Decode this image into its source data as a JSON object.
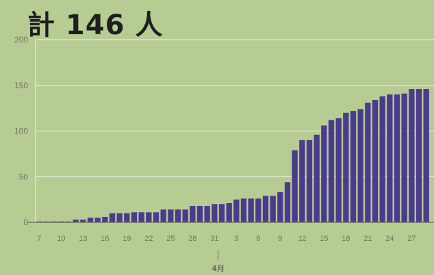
{
  "title": "計 146 人",
  "colors": {
    "background": "#b7cc93",
    "bar": "#4b3b8e",
    "grid": "#f2f5ec",
    "axis": "#6f7366"
  },
  "chart_data": {
    "type": "bar",
    "title": "計 146 人",
    "xlabel": "",
    "ylabel": "",
    "ylim": [
      0,
      200
    ],
    "yticks": [
      "0",
      "50",
      "100",
      "150",
      "200"
    ],
    "grid": true,
    "legend": "none",
    "categories": [
      "7",
      "8",
      "9",
      "10",
      "11",
      "12",
      "13",
      "14",
      "15",
      "16",
      "17",
      "18",
      "19",
      "20",
      "21",
      "22",
      "23",
      "24",
      "25",
      "26",
      "27",
      "28",
      "29",
      "30",
      "31",
      "1",
      "2",
      "3",
      "4",
      "5",
      "6",
      "7",
      "8",
      "9",
      "10",
      "11",
      "12",
      "13",
      "14",
      "15",
      "16",
      "17",
      "18",
      "19",
      "20",
      "21",
      "22",
      "23",
      "24",
      "25",
      "26",
      "27",
      "28",
      "29"
    ],
    "xtick_labels": [
      "7",
      "10",
      "13",
      "16",
      "19",
      "22",
      "25",
      "28",
      "31",
      "3",
      "6",
      "9",
      "12",
      "15",
      "18",
      "21",
      "24",
      "27"
    ],
    "month_label": "4月",
    "values": [
      1,
      1,
      1,
      1,
      1,
      3,
      3,
      5,
      5,
      6,
      10,
      10,
      10,
      11,
      11,
      11,
      11,
      14,
      14,
      14,
      14,
      18,
      18,
      18,
      20,
      20,
      21,
      25,
      26,
      26,
      26,
      29,
      29,
      33,
      44,
      79,
      90,
      90,
      96,
      106,
      112,
      114,
      120,
      122,
      124,
      131,
      134,
      138,
      140,
      140,
      141,
      146,
      146,
      146
    ]
  }
}
